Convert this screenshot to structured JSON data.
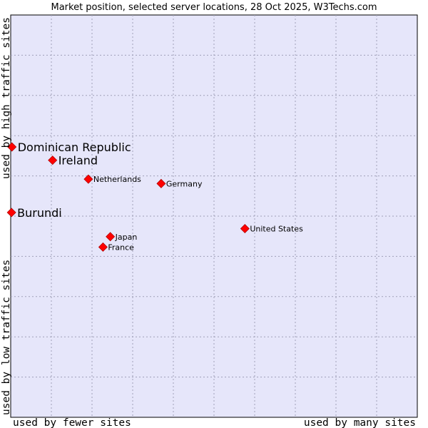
{
  "chart_data": {
    "type": "scatter",
    "title": "Market position, selected server locations, 28 Oct 2025, W3Techs.com",
    "xlabel_low": "used by fewer sites",
    "xlabel_high": "used by many sites",
    "ylabel_low": "used by low traffic sites",
    "ylabel_high": "used by high traffic sites",
    "xlim": [
      0,
      100
    ],
    "ylim": [
      0,
      100
    ],
    "grid": true,
    "marker_color": "#ff0000",
    "background_color": "#e6e6fa",
    "points": [
      {
        "label": "Dominican Republic",
        "x": 0.3,
        "y": 67.2,
        "emphasis": true
      },
      {
        "label": "Ireland",
        "x": 10.3,
        "y": 63.9,
        "emphasis": true
      },
      {
        "label": "Burundi",
        "x": 0.2,
        "y": 50.9,
        "emphasis": true
      },
      {
        "label": "Netherlands",
        "x": 19.1,
        "y": 59.2,
        "emphasis": false
      },
      {
        "label": "Germany",
        "x": 37.0,
        "y": 58.1,
        "emphasis": false
      },
      {
        "label": "United States",
        "x": 57.6,
        "y": 46.9,
        "emphasis": false
      },
      {
        "label": "Japan",
        "x": 24.5,
        "y": 44.9,
        "emphasis": false
      },
      {
        "label": "France",
        "x": 22.7,
        "y": 42.3,
        "emphasis": false
      }
    ]
  }
}
